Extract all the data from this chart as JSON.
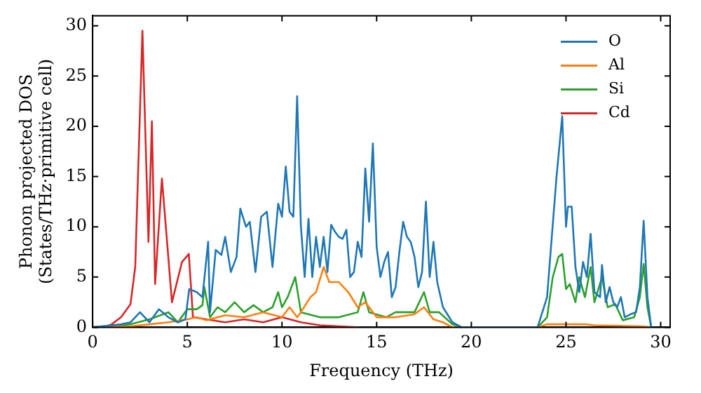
{
  "chart_data": {
    "type": "line",
    "xlabel": "Frequency (THz)",
    "ylabel": "Phonon projected DOS\n(States/THz·primitive cell)",
    "xlim": [
      0,
      30.5
    ],
    "ylim": [
      0,
      31
    ],
    "xticks": [
      0,
      5,
      10,
      15,
      20,
      25,
      30
    ],
    "yticks": [
      0,
      5,
      10,
      15,
      20,
      25,
      30
    ],
    "grid": false,
    "legend": "top right",
    "marker": "none",
    "line_style": "solid",
    "series": [
      {
        "name": "O",
        "color": "#1f77b4",
        "x": [
          0,
          1,
          1.5,
          2,
          2.5,
          3,
          3.5,
          4,
          4.5,
          4.9,
          5.1,
          5.5,
          5.8,
          6.1,
          6.2,
          6.5,
          6.8,
          7,
          7.3,
          7.6,
          7.8,
          8.1,
          8.3,
          8.6,
          8.9,
          9.2,
          9.5,
          9.8,
          10,
          10.2,
          10.4,
          10.6,
          10.8,
          11,
          11.2,
          11.4,
          11.6,
          11.8,
          12,
          12.2,
          12.4,
          12.6,
          12.8,
          13,
          13.2,
          13.4,
          13.6,
          13.8,
          14,
          14.2,
          14.4,
          14.6,
          14.8,
          15,
          15.2,
          15.4,
          15.6,
          15.8,
          16,
          16.2,
          16.4,
          16.6,
          16.8,
          17,
          17.2,
          17.4,
          17.6,
          17.8,
          18,
          18.2,
          18.5,
          19,
          19.5,
          23.5,
          24,
          24.5,
          24.8,
          25,
          25.1,
          25.3,
          25.5,
          25.7,
          25.9,
          26.1,
          26.3,
          26.5,
          26.8,
          26.9,
          27.1,
          27.3,
          27.5,
          27.7,
          27.9,
          28.1,
          28.4,
          28.7,
          28.9,
          29.1,
          29.3,
          29.5
        ],
        "values": [
          0,
          0.2,
          0.3,
          0.5,
          1.5,
          0.5,
          1.8,
          1,
          0.5,
          0.8,
          3.8,
          3.5,
          3,
          8.5,
          1.5,
          7.7,
          7.2,
          9,
          5.5,
          7,
          11.8,
          10,
          10.5,
          5.5,
          11,
          11.5,
          6,
          12.3,
          11,
          16,
          11.5,
          11,
          23,
          10,
          5,
          10.8,
          5,
          9,
          6,
          9,
          5.5,
          10.2,
          9.5,
          9,
          8.8,
          9.7,
          5,
          5.5,
          8.5,
          7,
          15.8,
          10.5,
          18.3,
          8,
          5,
          6.5,
          7.5,
          3,
          4,
          7.5,
          10.5,
          9,
          8.5,
          7,
          4,
          5.5,
          12.5,
          5,
          8.5,
          4.5,
          2,
          0.5,
          0,
          0,
          3,
          15,
          21,
          10,
          12,
          12,
          6,
          3.5,
          6.5,
          5,
          9.3,
          3.5,
          3,
          6.2,
          2.5,
          4,
          2.5,
          2,
          3,
          1,
          1.3,
          1.5,
          4,
          10.6,
          3,
          0
        ]
      },
      {
        "name": "Al",
        "color": "#ff7f0e",
        "x": [
          0,
          2,
          3,
          4,
          5,
          5.5,
          6,
          7,
          8,
          9,
          10,
          10.4,
          10.8,
          11,
          11.5,
          11.8,
          12.2,
          12.5,
          13,
          13.5,
          14,
          14.4,
          15,
          16,
          17,
          17.5,
          18,
          18.5,
          19,
          23.5,
          24,
          25,
          26,
          26.5,
          29,
          29.5
        ],
        "values": [
          0,
          0.1,
          0.3,
          0.5,
          0.8,
          1,
          0.7,
          1.2,
          1,
          1.5,
          1,
          2,
          1,
          1.5,
          3,
          3.5,
          6,
          4.5,
          4.5,
          3.5,
          2,
          2.5,
          1,
          1,
          1.3,
          2,
          0.8,
          0.5,
          0,
          0,
          0.3,
          0.3,
          0.3,
          0.2,
          0.1,
          0
        ]
      },
      {
        "name": "Si",
        "color": "#2ca02c",
        "x": [
          0,
          2,
          3,
          4,
          4.5,
          5,
          5.5,
          5.8,
          5.9,
          6.2,
          6.6,
          7,
          7.5,
          8,
          8.5,
          9,
          9.5,
          9.8,
          10,
          10.3,
          10.7,
          11,
          12,
          13,
          14,
          14.3,
          14.6,
          15.5,
          16,
          17,
          17.5,
          17.8,
          18.3,
          19,
          19.5,
          23.5,
          24,
          24.3,
          24.6,
          24.8,
          25,
          25.2,
          25.5,
          25.7,
          26,
          26.3,
          26.5,
          26.9,
          27.2,
          27.6,
          28,
          28.6,
          28.9,
          29.1,
          29.3,
          29.5
        ],
        "values": [
          0,
          0.3,
          0.8,
          1.5,
          0.5,
          1.8,
          1.8,
          2.2,
          4,
          1,
          2,
          1.5,
          2.5,
          1.5,
          2.2,
          1.5,
          2,
          3.5,
          2,
          3,
          5,
          1.5,
          1,
          1,
          1.5,
          3.5,
          1.5,
          1,
          1.5,
          1.5,
          3.5,
          1.5,
          1.5,
          0.3,
          0,
          0,
          1,
          5,
          7,
          7.3,
          3.8,
          4.3,
          2.5,
          5,
          3,
          6,
          2.5,
          5,
          2,
          2.3,
          0.7,
          1,
          3,
          6.3,
          2,
          0
        ]
      },
      {
        "name": "Cd",
        "color": "#d62728",
        "x": [
          0,
          0.6,
          1,
          1.5,
          2,
          2.25,
          2.63,
          2.95,
          3.13,
          3.3,
          3.66,
          4.19,
          4.72,
          5.08,
          5.3,
          6,
          7,
          8,
          9,
          10,
          11,
          12,
          13,
          14
        ],
        "values": [
          0,
          0,
          0.3,
          1,
          2.3,
          6,
          29.5,
          8.5,
          20.5,
          4.3,
          14.8,
          2.5,
          6.5,
          7.3,
          1,
          0.8,
          0.5,
          0.8,
          0.5,
          1,
          0.5,
          0.2,
          0.1,
          0
        ]
      }
    ]
  }
}
